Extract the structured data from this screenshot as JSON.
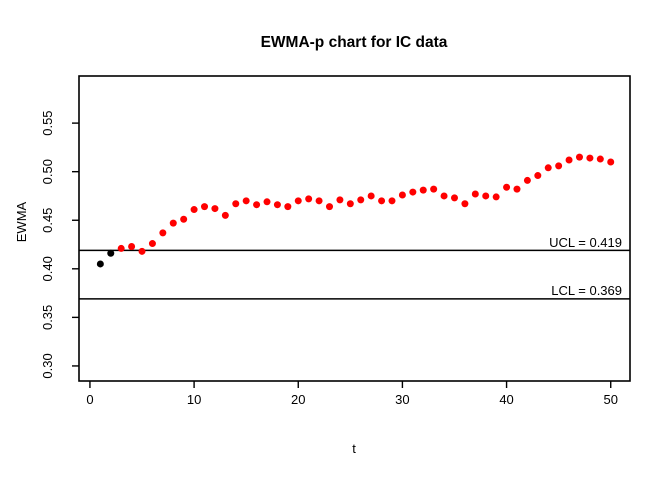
{
  "page": {
    "background": "#ffffff"
  },
  "chart_data": {
    "type": "scatter",
    "title": "EWMA-p chart for IC data",
    "xlabel": "t",
    "ylabel": "EWMA",
    "x": [
      1,
      2,
      3,
      4,
      5,
      6,
      7,
      8,
      9,
      10,
      11,
      12,
      13,
      14,
      15,
      16,
      17,
      18,
      19,
      20,
      21,
      22,
      23,
      24,
      25,
      26,
      27,
      28,
      29,
      30,
      31,
      32,
      33,
      34,
      35,
      36,
      37,
      38,
      39,
      40,
      41,
      42,
      43,
      44,
      45,
      46,
      47,
      48,
      49,
      50
    ],
    "y": [
      0.405,
      0.416,
      0.421,
      0.423,
      0.418,
      0.426,
      0.437,
      0.447,
      0.451,
      0.461,
      0.464,
      0.462,
      0.455,
      0.467,
      0.47,
      0.466,
      0.469,
      0.466,
      0.464,
      0.47,
      0.472,
      0.47,
      0.464,
      0.471,
      0.467,
      0.471,
      0.475,
      0.47,
      0.47,
      0.476,
      0.479,
      0.481,
      0.482,
      0.475,
      0.473,
      0.467,
      0.477,
      0.475,
      0.474,
      0.484,
      0.482,
      0.491,
      0.496,
      0.504,
      0.506,
      0.512,
      0.515,
      0.514,
      0.513,
      0.51
    ],
    "point_color": "#ff0000",
    "black_point_color": "#000000",
    "black_points": [
      1,
      2
    ],
    "ucl": {
      "value": 0.419,
      "label": "UCL = 0.419"
    },
    "lcl": {
      "value": 0.369,
      "label": "LCL = 0.369"
    },
    "limit_line_color": "#000000",
    "x_ticks": [
      0,
      10,
      20,
      30,
      40,
      50
    ],
    "x_tick_labels": [
      "0",
      "10",
      "20",
      "30",
      "40",
      "50"
    ],
    "y_ticks": [
      0.3,
      0.35,
      0.4,
      0.45,
      0.5,
      0.55
    ],
    "y_tick_labels": [
      "0.30",
      "0.35",
      "0.40",
      "0.45",
      "0.50",
      "0.55"
    ],
    "xlim": [
      -1.05,
      51.85
    ],
    "ylim": [
      0.2845,
      0.5985
    ],
    "grid": false,
    "legend": null
  }
}
